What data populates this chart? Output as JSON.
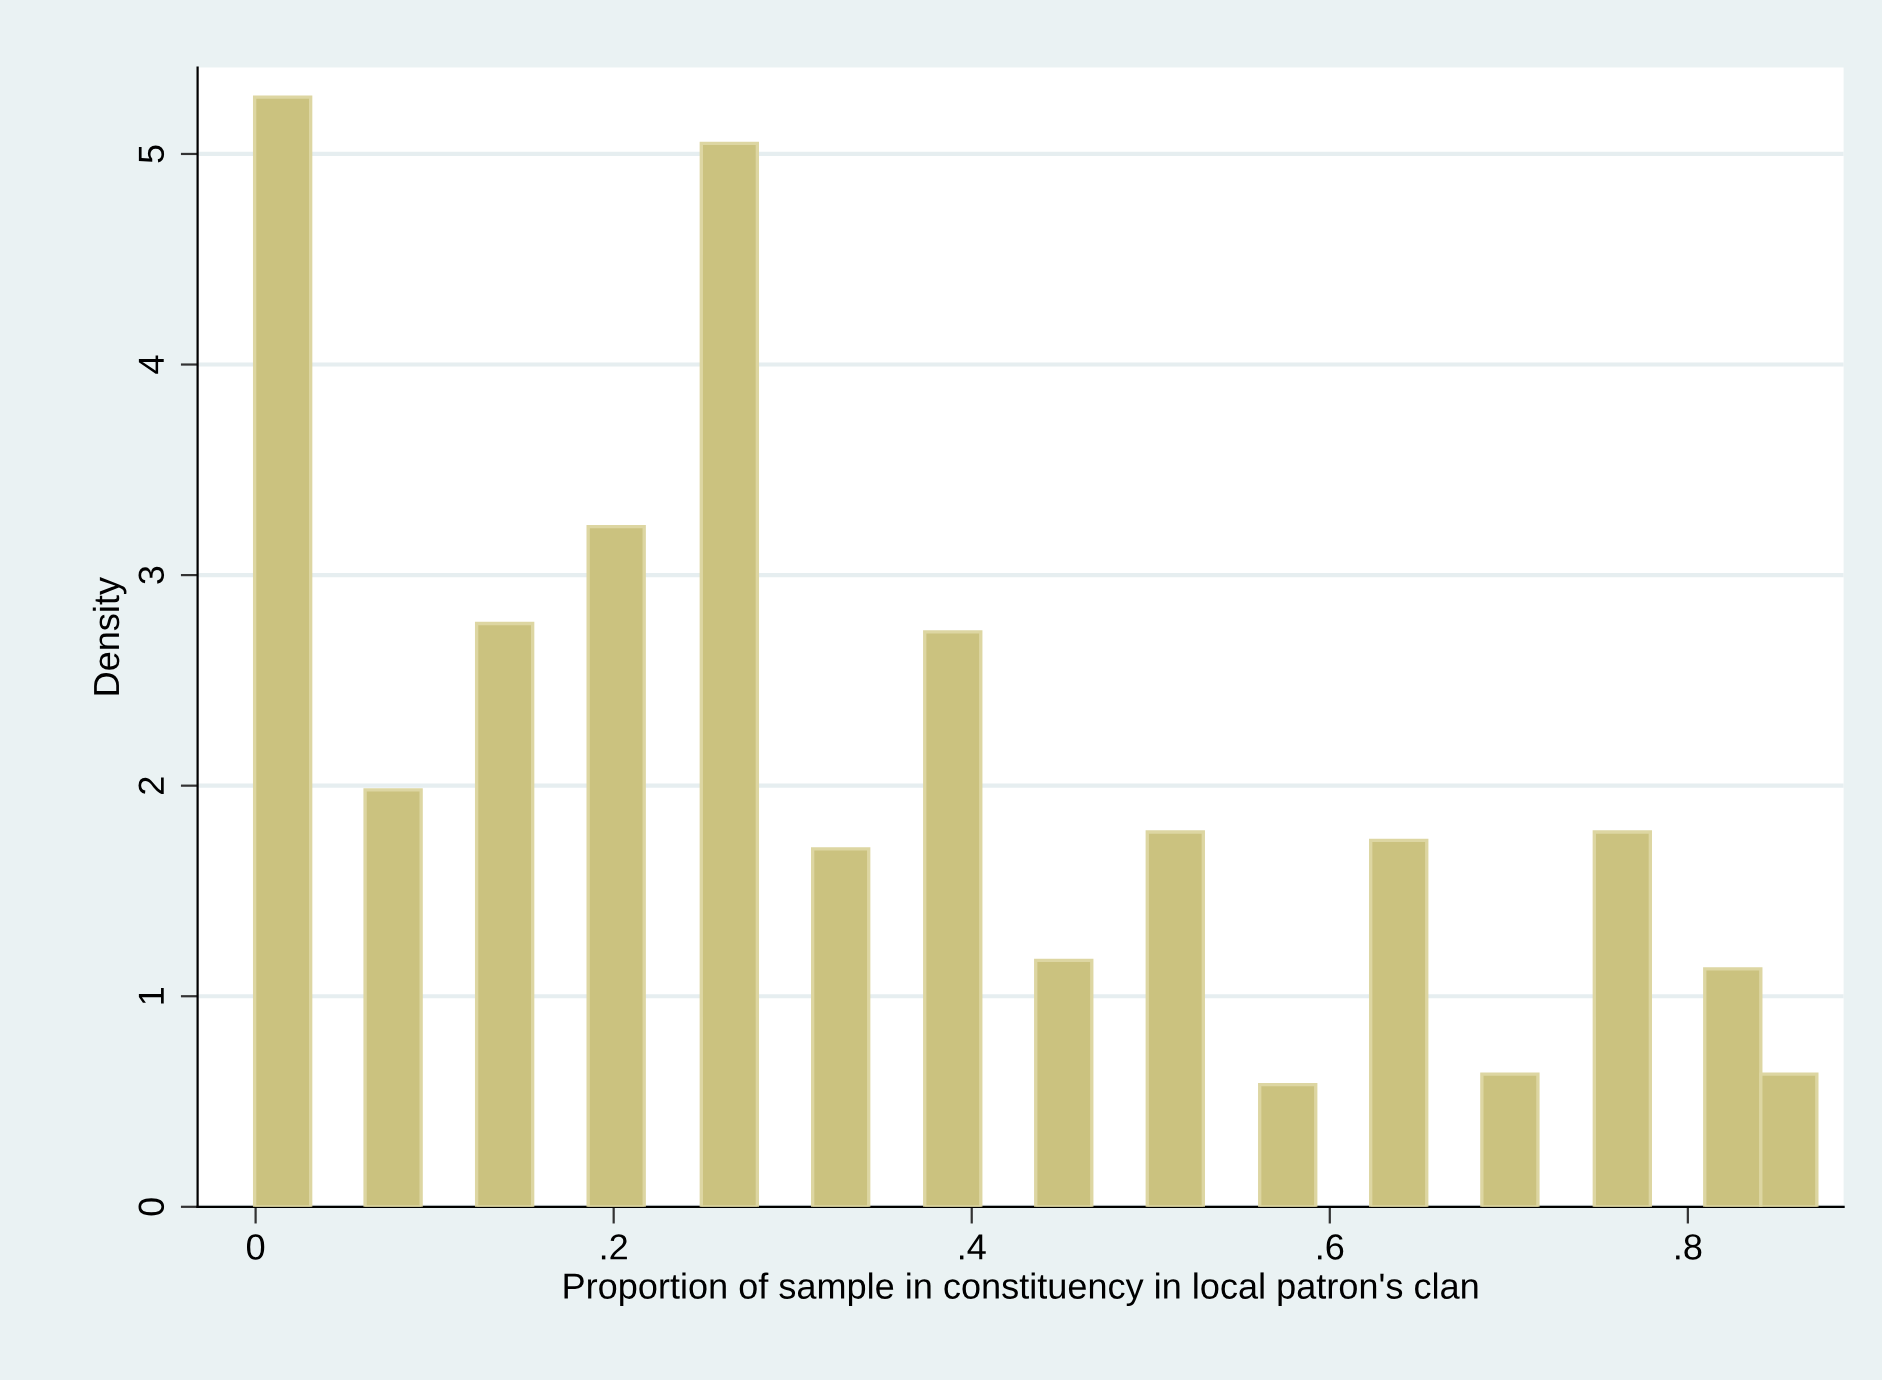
{
  "chart_data": {
    "type": "bar",
    "xlabel": "Proportion of sample in constituency in local patron's clan",
    "ylabel": "Density",
    "x": [
      0.0151,
      0.0768,
      0.1391,
      0.2014,
      0.2646,
      0.3268,
      0.3894,
      0.4514,
      0.5137,
      0.5765,
      0.6385,
      0.7006,
      0.7634,
      0.8251,
      0.8564
    ],
    "values": [
      5.27,
      1.98,
      2.77,
      3.23,
      5.05,
      1.7,
      2.73,
      1.17,
      1.78,
      0.58,
      1.74,
      0.63,
      1.78,
      1.13,
      0.63
    ],
    "color": "#cbc27f",
    "xlim": [
      -0.0324,
      0.887
    ],
    "xticks": [
      0,
      {
        "value": 0.2,
        "label": ".2"
      },
      {
        "value": 0.4,
        "label": ".4"
      },
      {
        "value": 0.6,
        "label": ".6"
      },
      {
        "value": 0.8,
        "label": ".8"
      }
    ],
    "ylim": [
      0,
      5.41
    ],
    "yticks": [
      0,
      1,
      2,
      3,
      4,
      5
    ],
    "grid": "y"
  }
}
